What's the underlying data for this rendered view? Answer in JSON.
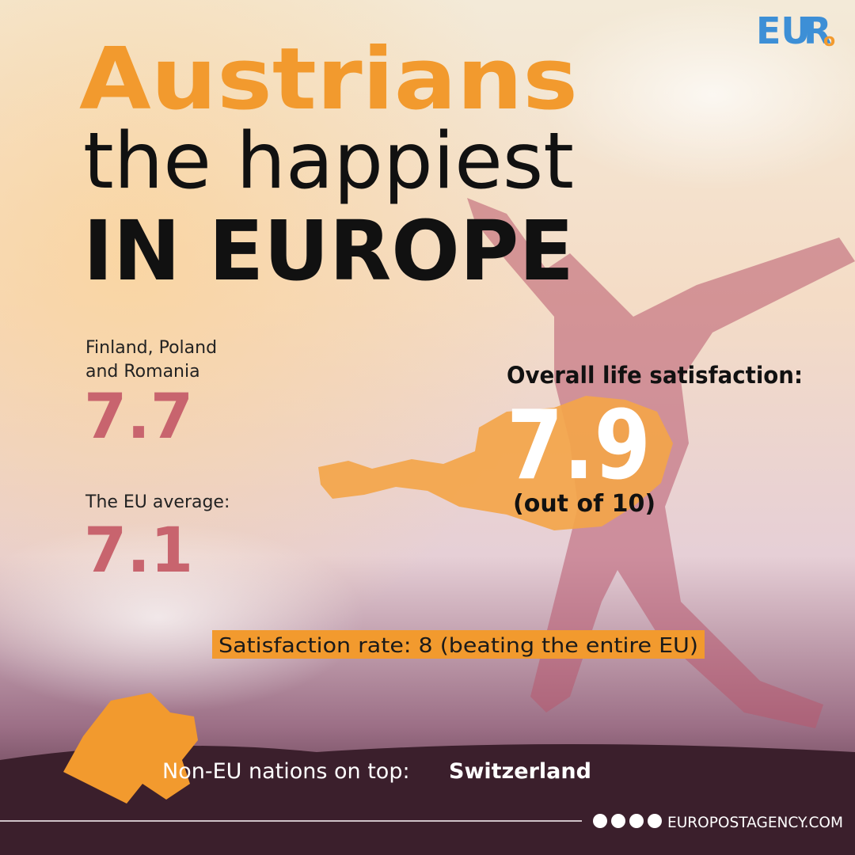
{
  "logo": {
    "main": "EU",
    "accent": "R",
    "small": "o"
  },
  "headline": {
    "line1": "Austrians",
    "line2": "the happiest",
    "line3": "IN EUROPE"
  },
  "stats": [
    {
      "label_lines": [
        "Finland, Poland",
        "and Romania"
      ],
      "value": 7.7
    },
    {
      "label_lines": [
        "The EU average:"
      ],
      "value": 7.1
    }
  ],
  "feature": {
    "label": "Overall life satisfaction:",
    "value": 7.9,
    "note": "(out of 10)"
  },
  "banner": "Satisfaction rate: 8 (beating the entire EU)",
  "non_eu": {
    "label": "Non-EU nations on top:",
    "country": "Switzerland"
  },
  "footer": {
    "site": "EUROPOSTAGENCY.COM"
  }
}
